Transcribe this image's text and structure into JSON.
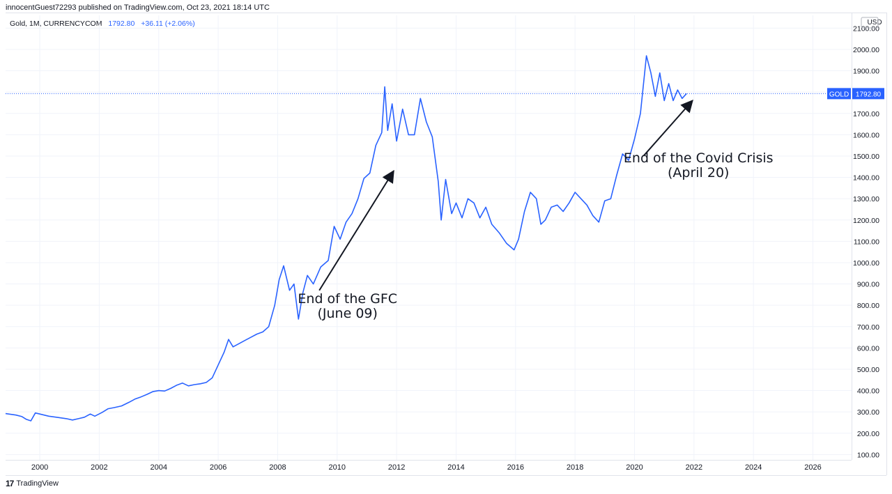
{
  "header": {
    "published_line": "innocentGuest72293 published on TradingView.com, Oct 23, 2021 18:14 UTC"
  },
  "legend": {
    "symbol": "Gold, 1M, CURRENCYCOM",
    "price": "1792.80",
    "change": "+36.11 (+2.06%)"
  },
  "price_scale": {
    "currency": "USD",
    "last_label_name": "GOLD",
    "last_label_value": "1792.80"
  },
  "footer": {
    "brand": "TradingView"
  },
  "colors": {
    "line": "#2962ff",
    "grid": "#f0f3fa",
    "axis_text": "#131722",
    "label_bg": "#2962ff"
  },
  "chart_data": {
    "type": "line",
    "title": "",
    "xlabel": "",
    "ylabel": "",
    "xlim": [
      1998.85,
      2027.3
    ],
    "ylim": [
      75,
      2160
    ],
    "x_ticks": [
      2000,
      2002,
      2004,
      2006,
      2008,
      2010,
      2012,
      2014,
      2016,
      2018,
      2020,
      2022,
      2024,
      2026
    ],
    "x_tick_labels": [
      "2000",
      "2002",
      "2004",
      "2006",
      "2008",
      "2010",
      "2012",
      "2014",
      "2016",
      "2018",
      "2020",
      "2022",
      "2024",
      "2026"
    ],
    "y_ticks": [
      100,
      200,
      300,
      400,
      500,
      600,
      700,
      800,
      900,
      1000,
      1100,
      1200,
      1300,
      1400,
      1500,
      1600,
      1700,
      1800,
      1900,
      2000,
      2100
    ],
    "y_tick_labels": [
      "100.00",
      "200.00",
      "300.00",
      "400.00",
      "500.00",
      "600.00",
      "700.00",
      "800.00",
      "900.00",
      "1000.00",
      "1100.00",
      "1200.00",
      "1300.00",
      "1400.00",
      "1500.00",
      "1600.00",
      "1700.00",
      "1800.00",
      "1900.00",
      "2000.00",
      "2100.00"
    ],
    "grid": true,
    "last_value": 1792.8,
    "series": [
      {
        "x": [
          1998.85,
          1999.2,
          1999.4,
          1999.55,
          1999.7,
          1999.85,
          2000.0,
          2000.3,
          2000.6,
          2000.9,
          2001.1,
          2001.3,
          2001.5,
          2001.7,
          2001.85,
          2002.1,
          2002.3,
          2002.5,
          2002.75,
          2003.0,
          2003.2,
          2003.4,
          2003.6,
          2003.8,
          2004.0,
          2004.2,
          2004.4,
          2004.6,
          2004.8,
          2005.0,
          2005.2,
          2005.4,
          2005.6,
          2005.8,
          2006.0,
          2006.2,
          2006.35,
          2006.5,
          2006.7,
          2006.9,
          2007.1,
          2007.3,
          2007.5,
          2007.7,
          2007.9,
          2008.05,
          2008.2,
          2008.4,
          2008.55,
          2008.7,
          2008.85,
          2009.0,
          2009.2,
          2009.45,
          2009.7,
          2009.9,
          2010.1,
          2010.3,
          2010.5,
          2010.7,
          2010.9,
          2011.1,
          2011.3,
          2011.5,
          2011.6,
          2011.7,
          2011.85,
          2012.0,
          2012.2,
          2012.4,
          2012.6,
          2012.8,
          2013.0,
          2013.2,
          2013.4,
          2013.5,
          2013.65,
          2013.85,
          2014.0,
          2014.2,
          2014.4,
          2014.6,
          2014.8,
          2015.0,
          2015.2,
          2015.45,
          2015.7,
          2015.95,
          2016.1,
          2016.3,
          2016.5,
          2016.7,
          2016.85,
          2017.0,
          2017.2,
          2017.4,
          2017.6,
          2017.8,
          2018.0,
          2018.2,
          2018.4,
          2018.6,
          2018.8,
          2019.0,
          2019.2,
          2019.4,
          2019.6,
          2019.8,
          2020.0,
          2020.2,
          2020.4,
          2020.55,
          2020.7,
          2020.85,
          2021.0,
          2021.15,
          2021.3,
          2021.45,
          2021.6,
          2021.75
        ],
        "y": [
          292,
          285,
          278,
          265,
          258,
          295,
          290,
          280,
          274,
          268,
          262,
          268,
          275,
          290,
          280,
          298,
          315,
          320,
          328,
          345,
          360,
          370,
          382,
          395,
          400,
          398,
          410,
          425,
          435,
          422,
          428,
          432,
          438,
          460,
          520,
          580,
          640,
          605,
          620,
          635,
          650,
          665,
          675,
          700,
          800,
          920,
          985,
          870,
          900,
          735,
          860,
          940,
          900,
          980,
          1010,
          1170,
          1110,
          1190,
          1230,
          1300,
          1395,
          1420,
          1550,
          1610,
          1825,
          1620,
          1745,
          1570,
          1720,
          1600,
          1600,
          1770,
          1660,
          1590,
          1380,
          1200,
          1390,
          1230,
          1280,
          1210,
          1300,
          1280,
          1210,
          1260,
          1180,
          1140,
          1090,
          1060,
          1110,
          1240,
          1330,
          1300,
          1180,
          1200,
          1260,
          1270,
          1240,
          1280,
          1330,
          1300,
          1270,
          1220,
          1190,
          1290,
          1300,
          1410,
          1510,
          1480,
          1580,
          1700,
          1970,
          1890,
          1780,
          1890,
          1760,
          1840,
          1760,
          1810,
          1770,
          1793
        ]
      }
    ],
    "annotations": [
      {
        "lines": [
          "End of the GFC",
          "(June 09)"
        ],
        "arrow_from": [
          2009.4,
          870
        ],
        "arrow_to": [
          2011.9,
          1430
        ],
        "text_at": [
          2010.35,
          810
        ]
      },
      {
        "lines": [
          "End of the Covid Crisis",
          "(April 20)"
        ],
        "arrow_from": [
          2020.3,
          1500
        ],
        "arrow_to": [
          2021.95,
          1760
        ],
        "text_at": [
          2022.15,
          1470
        ]
      }
    ]
  }
}
